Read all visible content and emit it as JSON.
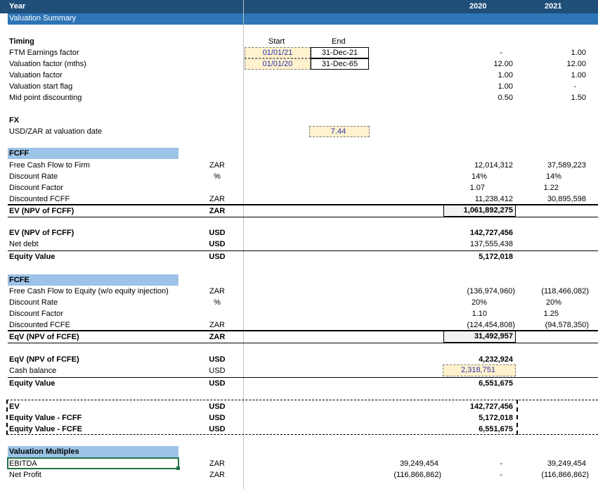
{
  "header": {
    "year_label": "Year",
    "col_2020": "2020",
    "col_2021": "2021"
  },
  "section_title": "Valuation Summary",
  "timing": {
    "title": "Timing",
    "start_hdr": "Start",
    "end_hdr": "End",
    "rows": [
      {
        "label": "FTM Earnings factor",
        "start": "01/01/21",
        "end": "31-Dec-21",
        "v2020": "-",
        "v2021": "1.00"
      },
      {
        "label": "Valuation factor (mths)",
        "start": "01/01/20",
        "end": "31-Dec-65",
        "v2020": "12.00",
        "v2021": "12.00"
      },
      {
        "label": "Valuation factor",
        "v2020": "1.00",
        "v2021": "1.00"
      },
      {
        "label": "Valuation start flag",
        "v2020": "1.00",
        "v2021": "-"
      },
      {
        "label": "Mid point discounting",
        "v2020": "0.50",
        "v2021": "1.50"
      }
    ]
  },
  "fx": {
    "title": "FX",
    "label": "USD/ZAR at valuation date",
    "value": "7.44"
  },
  "fcff": {
    "title": "FCFF",
    "rows": [
      {
        "label": "Free Cash Flow to Firm",
        "unit": "ZAR",
        "v2020": "12,014,312",
        "v2021": "37,589,223"
      },
      {
        "label": "Discount Rate",
        "unit": "%",
        "v2020": "14%",
        "v2021": "14%"
      },
      {
        "label": "Discount Factor",
        "unit": "",
        "v2020": "1.07",
        "v2021": "1.22"
      },
      {
        "label": "Discounted FCFF",
        "unit": "ZAR",
        "v2020": "11,238,412",
        "v2021": "30,895,598"
      }
    ],
    "total": {
      "label": "EV (NPV of FCFF)",
      "unit": "ZAR",
      "value": "1,061,892,275"
    },
    "usd": [
      {
        "label": "EV (NPV of FCFF)",
        "unit": "USD",
        "value": "142,727,456"
      },
      {
        "label": "Net debt",
        "unit": "USD",
        "value": "137,555,438"
      }
    ],
    "equity": {
      "label": "Equity Value",
      "unit": "USD",
      "value": "5,172,018"
    }
  },
  "fcfe": {
    "title": "FCFE",
    "rows": [
      {
        "label": "Free Cash Flow to Equity (w/o equity injection)",
        "unit": "ZAR",
        "v2020": "(136,974,960)",
        "v2021": "(118,466,082)"
      },
      {
        "label": "Discount Rate",
        "unit": "%",
        "v2020": "20%",
        "v2021": "20%"
      },
      {
        "label": "Discount Factor",
        "unit": "",
        "v2020": "1.10",
        "v2021": "1.25"
      },
      {
        "label": "Discounted FCFE",
        "unit": "ZAR",
        "v2020": "(124,454,808)",
        "v2021": "(94,578,350)"
      }
    ],
    "total": {
      "label": "EqV (NPV of FCFE)",
      "unit": "ZAR",
      "value": "31,492,957"
    },
    "usd": [
      {
        "label": "EqV (NPV of FCFE)",
        "unit": "USD",
        "value": "4,232,924"
      },
      {
        "label": "Cash balance",
        "unit": "USD",
        "value": "2,318,751"
      }
    ],
    "equity": {
      "label": "Equity Value",
      "unit": "USD",
      "value": "6,551,675"
    }
  },
  "summary": [
    {
      "label": "EV",
      "unit": "USD",
      "value": "142,727,456"
    },
    {
      "label": "Equity Value - FCFF",
      "unit": "USD",
      "value": "5,172,018"
    },
    {
      "label": "Equity Value - FCFE",
      "unit": "USD",
      "value": "6,551,675"
    }
  ],
  "multiples": {
    "title": "Valuation Multiples",
    "rows": [
      {
        "label": "EBITDA",
        "unit": "ZAR",
        "total": "39,249,454",
        "v2020": "-",
        "v2021": "39,249,454"
      },
      {
        "label": "Net Profit",
        "unit": "ZAR",
        "total": "(116,866,862)",
        "v2020": "-",
        "v2021": "(116,866,862)"
      }
    ]
  },
  "colors": {
    "header_bg": "#1f4e79",
    "section_bg": "#2e75b6",
    "block_bg": "#9dc3e6",
    "input_bg": "#fff2cc",
    "input_text": "#2f2fb0",
    "selected_border": "#217346"
  }
}
